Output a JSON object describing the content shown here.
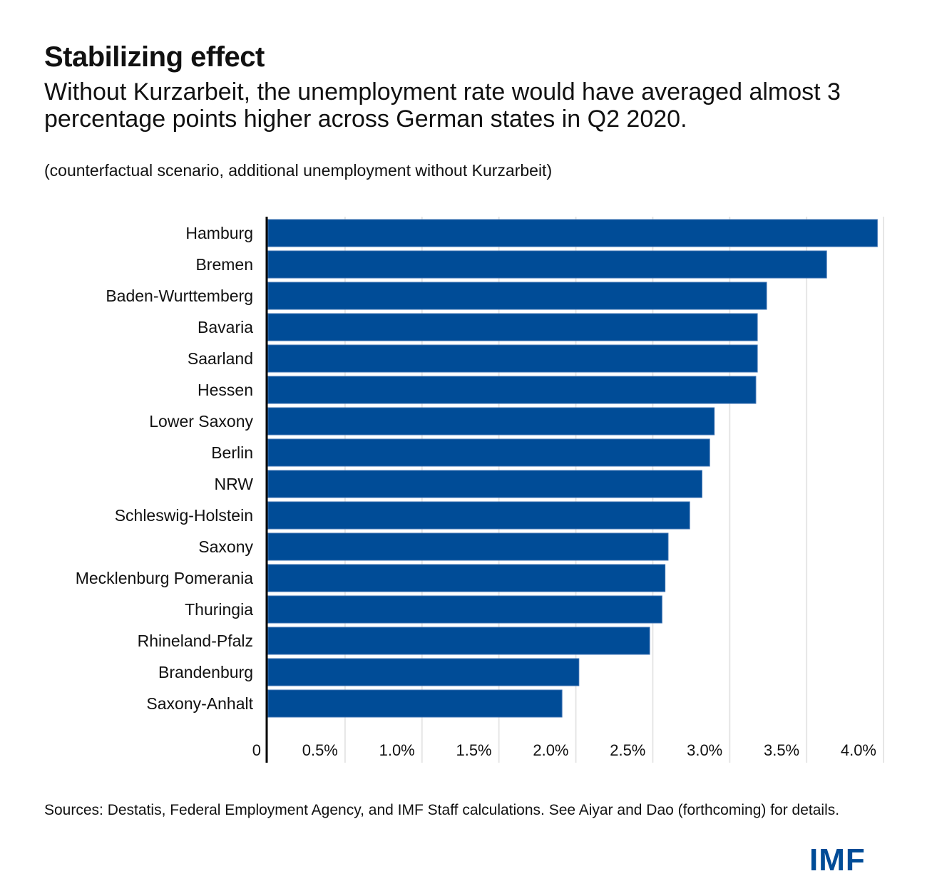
{
  "header": {
    "title": "Stabilizing effect",
    "subtitle": "Without Kurzarbeit, the unemployment rate would have averaged almost 3 percentage points higher across German states in Q2 2020.",
    "note": "(counterfactual scenario, additional unemployment without Kurzarbeit)"
  },
  "footer": {
    "source": "Sources: Destatis, Federal Employment Agency, and IMF Staff calculations. See Aiyar and Dao (forthcoming) for details.",
    "logo": "IMF"
  },
  "colors": {
    "bar": "#004C97",
    "grid": "#E6E6E6",
    "axis": "#000000",
    "logo": "#004C97"
  },
  "chart_data": {
    "type": "bar",
    "orientation": "horizontal",
    "title": "Stabilizing effect",
    "xlabel": "",
    "ylabel": "",
    "xlim": [
      0,
      4.0
    ],
    "unit": "%",
    "grid": true,
    "categories": [
      "Hamburg",
      "Bremen",
      "Baden-Wurttemberg",
      "Bavaria",
      "Saarland",
      "Hessen",
      "Lower Saxony",
      "Berlin",
      "NRW",
      "Schleswig-Holstein",
      "Saxony",
      "Mecklenburg Pomerania",
      "Thuringia",
      "Rhineland-Pfalz",
      "Brandenburg",
      "Saxony-Anhalt"
    ],
    "values": [
      3.96,
      3.63,
      3.24,
      3.18,
      3.18,
      3.17,
      2.9,
      2.87,
      2.82,
      2.74,
      2.6,
      2.58,
      2.56,
      2.48,
      2.02,
      1.91
    ],
    "x_ticks": [
      0,
      0.5,
      1.0,
      1.5,
      2.0,
      2.5,
      3.0,
      3.5,
      4.0
    ],
    "x_tick_labels": [
      "0",
      "0.5%",
      "1.0%",
      "1.5%",
      "2.0%",
      "2.5%",
      "3.0%",
      "3.5%",
      "4.0%"
    ]
  }
}
